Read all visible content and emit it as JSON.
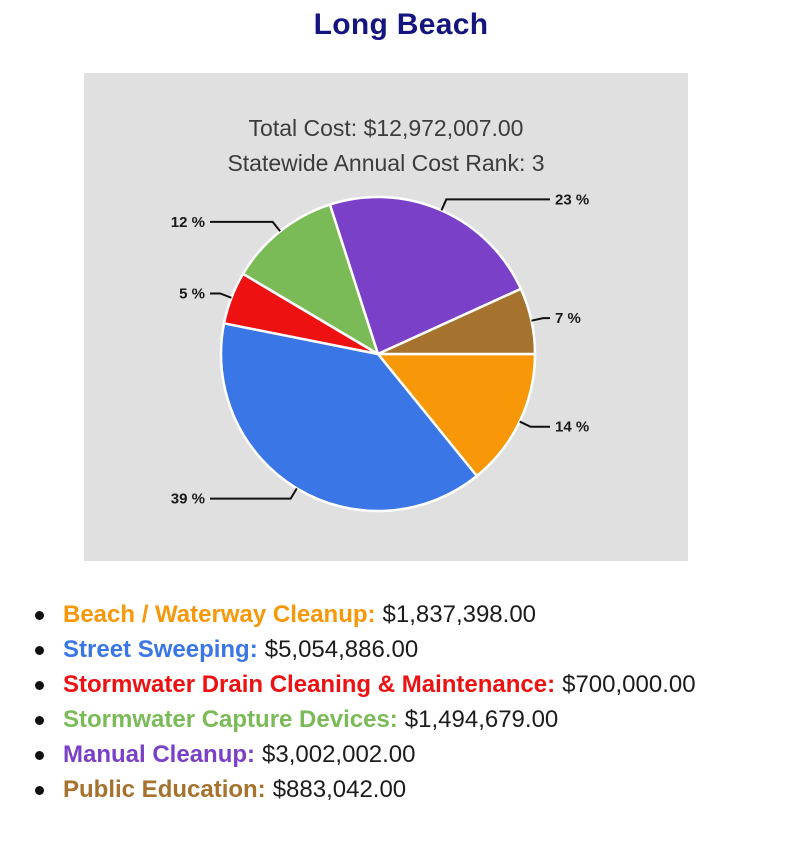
{
  "title": "Long Beach",
  "colors": {
    "title": "#15157f",
    "panel_bg": "#e0e0e0",
    "header_text": "#3c3c3c",
    "leader_line": "#111111"
  },
  "chart_data": {
    "type": "pie",
    "title": "Long Beach",
    "total_cost_text": "Total Cost: $12,972,007.00",
    "rank_text": "Statewide Annual Cost Rank: 3",
    "total_value": 12972007.0,
    "start_angle_deg": 0,
    "direction": "clockwise",
    "legend_position": "bottom-left",
    "slices": [
      {
        "name": "Beach / Waterway Cleanup",
        "legend_label": "Beach / Waterway Cleanup:",
        "value": 1837398.0,
        "amount_text": "$1,837,398.00",
        "percent": 14.2,
        "percent_label": "14 %",
        "color": "#f89708"
      },
      {
        "name": "Street Sweeping",
        "legend_label": "Street Sweeping:",
        "value": 5054886.0,
        "amount_text": "$5,054,886.00",
        "percent": 39.0,
        "percent_label": "39 %",
        "color": "#3b76e6"
      },
      {
        "name": "Stormwater Drain Cleaning & Maintenance",
        "legend_label": "Stormwater Drain Cleaning & Maintenance:",
        "value": 700000.0,
        "amount_text": "$700,000.00",
        "percent": 5.4,
        "percent_label": "5 %",
        "color": "#ee1111"
      },
      {
        "name": "Stormwater Capture Devices",
        "legend_label": "Stormwater Capture Devices:",
        "value": 1494679.0,
        "amount_text": "$1,494,679.00",
        "percent": 11.5,
        "percent_label": "12 %",
        "color": "#7abb58"
      },
      {
        "name": "Manual Cleanup",
        "legend_label": "Manual Cleanup:",
        "value": 3002002.0,
        "amount_text": "$3,002,002.00",
        "percent": 23.1,
        "percent_label": "23 %",
        "color": "#7b40c8"
      },
      {
        "name": "Public Education",
        "legend_label": "Public Education:",
        "value": 883042.0,
        "amount_text": "$883,042.00",
        "percent": 6.8,
        "percent_label": "7 %",
        "color": "#a5732e"
      }
    ]
  }
}
